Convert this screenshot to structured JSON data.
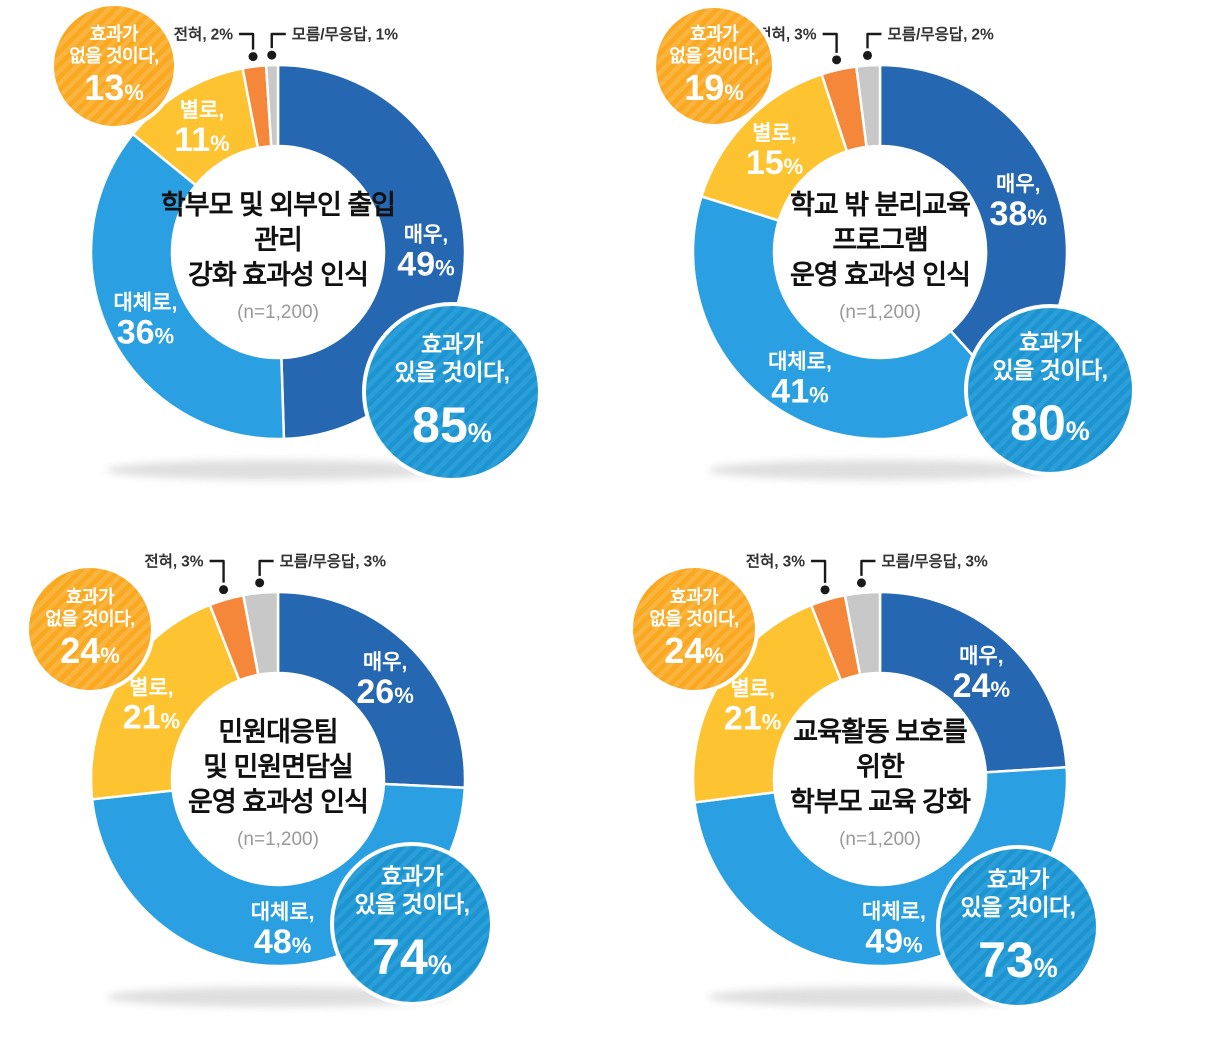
{
  "palette": {
    "very": "#2667b2",
    "mostly": "#2aa0e2",
    "not_really": "#fdc330",
    "not_at_all": "#f5873a",
    "dont_know": "#c8c8c8",
    "positive_bubble": "#1d93d0",
    "positive_bubble_stripe": "#2b9fd9",
    "negative_bubble": "#f9a81f",
    "negative_bubble_stripe": "#fab440",
    "slice_label": "#ffffff",
    "callout_text": "#333333",
    "leader_line": "#1a1a1a",
    "title_text": "#111111",
    "sample_text": "#999999",
    "shadow": "#d9d9d9"
  },
  "chart_data": [
    {
      "type": "pie",
      "title_lines": [
        "학부모 및 외부인 출입",
        "관리",
        "강화 효과성 인식"
      ],
      "sample": "(n=1,200)",
      "legend_position": "none",
      "segments": [
        {
          "label": "매우,",
          "value": 49,
          "color": "very"
        },
        {
          "label": "대체로,",
          "value": 36,
          "color": "mostly"
        },
        {
          "label": "별로,",
          "value": 11,
          "color": "not_really"
        },
        {
          "label": "전혀,",
          "value": 2,
          "color": "not_at_all",
          "callout": "left"
        },
        {
          "label": "모름/무응답,",
          "value": 1,
          "color": "dont_know",
          "callout": "right"
        }
      ],
      "negative_bubble": {
        "lines": [
          "효과가",
          "없을 것이다,"
        ],
        "value": 13
      },
      "positive_bubble": {
        "lines": [
          "효과가",
          "있을 것이다,"
        ],
        "value": 85
      }
    },
    {
      "type": "pie",
      "title_lines": [
        "학교 밖 분리교육",
        "프로그램",
        "운영 효과성 인식"
      ],
      "sample": "(n=1,200)",
      "legend_position": "none",
      "segments": [
        {
          "label": "매우,",
          "value": 38,
          "color": "very"
        },
        {
          "label": "대체로,",
          "value": 41,
          "color": "mostly"
        },
        {
          "label": "별로,",
          "value": 15,
          "color": "not_really"
        },
        {
          "label": "전혀,",
          "value": 3,
          "color": "not_at_all",
          "callout": "left"
        },
        {
          "label": "모름/무응답,",
          "value": 2,
          "color": "dont_know",
          "callout": "right"
        }
      ],
      "negative_bubble": {
        "lines": [
          "효과가",
          "없을 것이다,"
        ],
        "value": 19
      },
      "positive_bubble": {
        "lines": [
          "효과가",
          "있을 것이다,"
        ],
        "value": 80
      }
    },
    {
      "type": "pie",
      "title_lines": [
        "민원대응팀",
        "및 민원면담실",
        "운영 효과성 인식"
      ],
      "sample": "(n=1,200)",
      "legend_position": "none",
      "segments": [
        {
          "label": "매우,",
          "value": 26,
          "color": "very"
        },
        {
          "label": "대체로,",
          "value": 48,
          "color": "mostly"
        },
        {
          "label": "별로,",
          "value": 21,
          "color": "not_really"
        },
        {
          "label": "전혀,",
          "value": 3,
          "color": "not_at_all",
          "callout": "left"
        },
        {
          "label": "모름/무응답,",
          "value": 3,
          "color": "dont_know",
          "callout": "right"
        }
      ],
      "negative_bubble": {
        "lines": [
          "효과가",
          "없을 것이다,"
        ],
        "value": 24
      },
      "positive_bubble": {
        "lines": [
          "효과가",
          "있을 것이다,"
        ],
        "value": 74
      }
    },
    {
      "type": "pie",
      "title_lines": [
        "교육활동 보호를",
        "위한",
        "학부모 교육 강화"
      ],
      "sample": "(n=1,200)",
      "legend_position": "none",
      "segments": [
        {
          "label": "매우,",
          "value": 24,
          "color": "very"
        },
        {
          "label": "대체로,",
          "value": 49,
          "color": "mostly"
        },
        {
          "label": "별로,",
          "value": 21,
          "color": "not_really"
        },
        {
          "label": "전혀,",
          "value": 3,
          "color": "not_at_all",
          "callout": "left"
        },
        {
          "label": "모름/무응답,",
          "value": 3,
          "color": "dont_know",
          "callout": "right"
        }
      ],
      "negative_bubble": {
        "lines": [
          "효과가",
          "없을 것이다,"
        ],
        "value": 24
      },
      "positive_bubble": {
        "lines": [
          "효과가",
          "있을 것이다,"
        ],
        "value": 73
      }
    }
  ]
}
